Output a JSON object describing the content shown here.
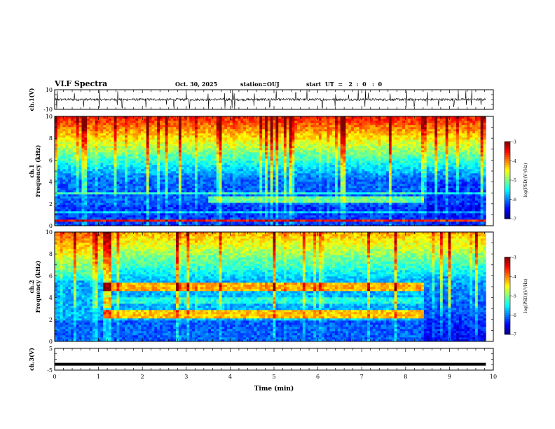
{
  "header": {
    "title": "VLF Spectra",
    "date": "Oct. 30, 2025",
    "station": "station=OUJ",
    "start": "start  UT  =   2  :  0   :  0"
  },
  "chart_data": [
    {
      "type": "line",
      "panel": "ch1-waveform",
      "ylabel": "ch.1(V)",
      "ylim": [
        -10,
        10
      ],
      "yticks": [
        "10",
        "-10"
      ],
      "x": [
        0,
        9.83
      ],
      "baseline": 0,
      "noise_amplitude": 2,
      "spikes": [
        0.05,
        0.45,
        0.66,
        1.02,
        1.43,
        1.54,
        2.08,
        2.55,
        2.72,
        3.0,
        3.07,
        3.5,
        3.88,
        4.05,
        4.1,
        4.55,
        4.9,
        5.05,
        5.5,
        5.75,
        6.1,
        6.4,
        6.7,
        6.92,
        7.08,
        7.15,
        7.65,
        8.02,
        8.2,
        8.5,
        8.75,
        9.1,
        9.2,
        9.38,
        9.5,
        9.72
      ]
    },
    {
      "type": "heatmap",
      "panel": "ch1-spectrogram",
      "ylabel": "ch.1\nFrequency (kHz)",
      "ylim": [
        0,
        10
      ],
      "yticks": [
        "0",
        "2",
        "4",
        "6",
        "8",
        "10"
      ],
      "x_range": [
        0,
        9.83
      ],
      "colorbar": {
        "label": "log(PSD)(V²/Hz)",
        "min": -7,
        "max": -3,
        "ticks": [
          "-3",
          "-4",
          "-5",
          "-6",
          "-7"
        ]
      },
      "features": [
        "broadband sferics 6-10 kHz",
        "band near 2.4 kHz 3.5-8.4 min",
        "lines at 0.5, 1.2, 3.0 kHz"
      ]
    },
    {
      "type": "heatmap",
      "panel": "ch2-spectrogram",
      "ylabel": "ch.2\nFrequency (kHz)",
      "ylim": [
        0,
        10
      ],
      "yticks": [
        "0",
        "2",
        "4",
        "6",
        "8",
        "10"
      ],
      "x_range": [
        0,
        9.83
      ],
      "colorbar": {
        "label": "log(PSD)(V²/Hz)",
        "min": -7,
        "max": -3,
        "ticks": [
          "-3",
          "-4",
          "-5",
          "-6",
          "-7"
        ]
      },
      "features": [
        "bands at 5.0 and 2.5 kHz from 1.1 to 8.4 min",
        "dark gap after 8.4 min below 6 kHz"
      ]
    },
    {
      "type": "line",
      "panel": "ch3-waveform",
      "ylabel": "ch.3(V)",
      "ylim": [
        -5,
        5
      ],
      "yticks": [
        "5",
        "-5"
      ],
      "x": [
        0,
        9.83
      ],
      "values": [
        -2.3,
        -2.3
      ]
    }
  ],
  "x_axis": {
    "label": "Time (min)",
    "ticks": [
      "0",
      "1",
      "2",
      "3",
      "4",
      "5",
      "6",
      "7",
      "8",
      "9",
      "10"
    ],
    "xlim": [
      0,
      10
    ]
  },
  "colors": {
    "scale": [
      "#00007f",
      "#0000ff",
      "#007fff",
      "#00ffff",
      "#7fff7f",
      "#ffff00",
      "#ff7f00",
      "#ff0000",
      "#7f0000"
    ]
  }
}
